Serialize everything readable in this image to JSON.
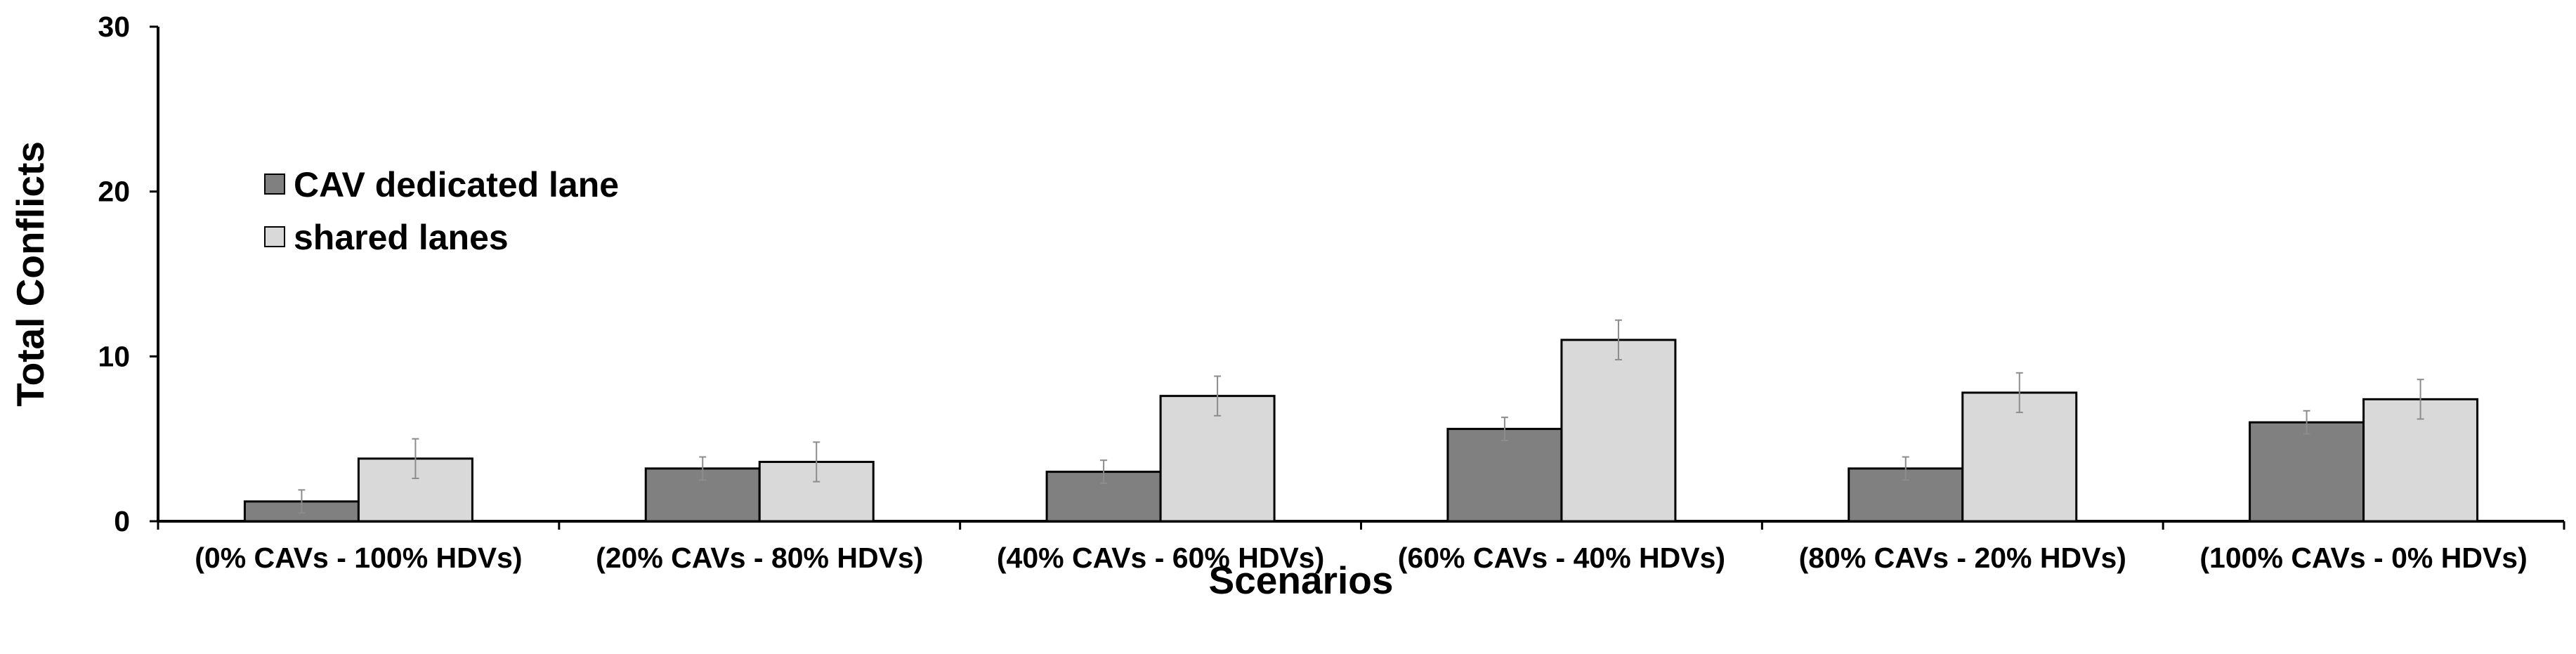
{
  "chart_data": {
    "type": "bar",
    "title": "",
    "xlabel": "Scenarios",
    "ylabel": "Total Conflicts",
    "ylim": [
      0,
      30
    ],
    "yticks": [
      0,
      10,
      20,
      30
    ],
    "categories": [
      "(0% CAVs - 100% HDVs)",
      "(20% CAVs - 80% HDVs)",
      "(40% CAVs - 60% HDVs)",
      "(60% CAVs - 40% HDVs)",
      "(80% CAVs - 20% HDVs)",
      "(100% CAVs - 0% HDVs)"
    ],
    "series": [
      {
        "name": "CAV dedicated lane",
        "color": "#808080",
        "values": [
          1.2,
          3.2,
          3.0,
          5.6,
          3.2,
          6.0
        ],
        "errors": [
          0.7,
          0.7,
          0.7,
          0.7,
          0.7,
          0.7
        ]
      },
      {
        "name": "shared lanes",
        "color": "#d9d9d9",
        "values": [
          3.8,
          3.6,
          7.6,
          11.0,
          7.8,
          7.4
        ],
        "errors": [
          1.2,
          1.2,
          1.2,
          1.2,
          1.2,
          1.2
        ]
      }
    ],
    "legend_position": "upper-left",
    "grid": false
  }
}
